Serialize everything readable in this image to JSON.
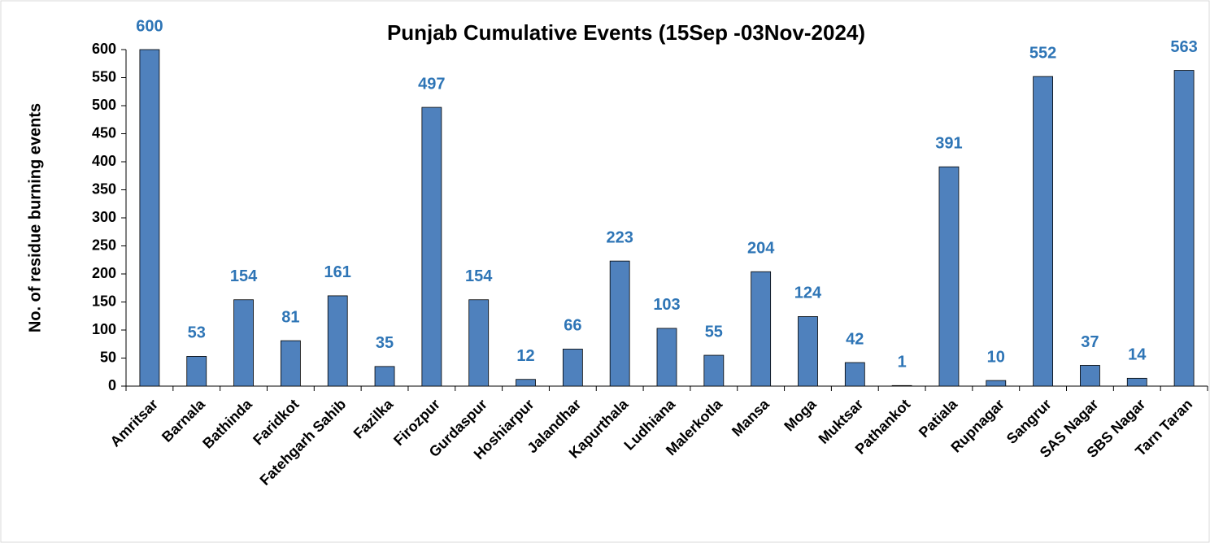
{
  "chart_data": {
    "type": "bar",
    "title": "Punjab Cumulative Events (15Sep -03Nov-2024)",
    "y_label": "No. of residue burning events",
    "categories": [
      "Amritsar",
      "Barnala",
      "Bathinda",
      "Faridkot",
      "Fatehgarh Sahib",
      "Fazilka",
      "Firozpur",
      "Gurdaspur",
      "Hoshiarpur",
      "Jalandhar",
      "Kapurthala",
      "Ludhiana",
      "Malerkotla",
      "Mansa",
      "Moga",
      "Muktsar",
      "Pathankot",
      "Patiala",
      "Rupnagar",
      "Sangrur",
      "SAS Nagar",
      "SBS Nagar",
      "Tarn Taran"
    ],
    "values": [
      600,
      53,
      154,
      81,
      161,
      35,
      497,
      154,
      12,
      66,
      223,
      103,
      55,
      204,
      124,
      42,
      1,
      391,
      10,
      552,
      37,
      14,
      563
    ],
    "color": "#4f81bd",
    "label_color": "#2e75b6",
    "ylim": [
      0,
      600
    ],
    "yticks": [
      0,
      50,
      100,
      150,
      200,
      250,
      300,
      350,
      400,
      450,
      500,
      550,
      600
    ]
  }
}
